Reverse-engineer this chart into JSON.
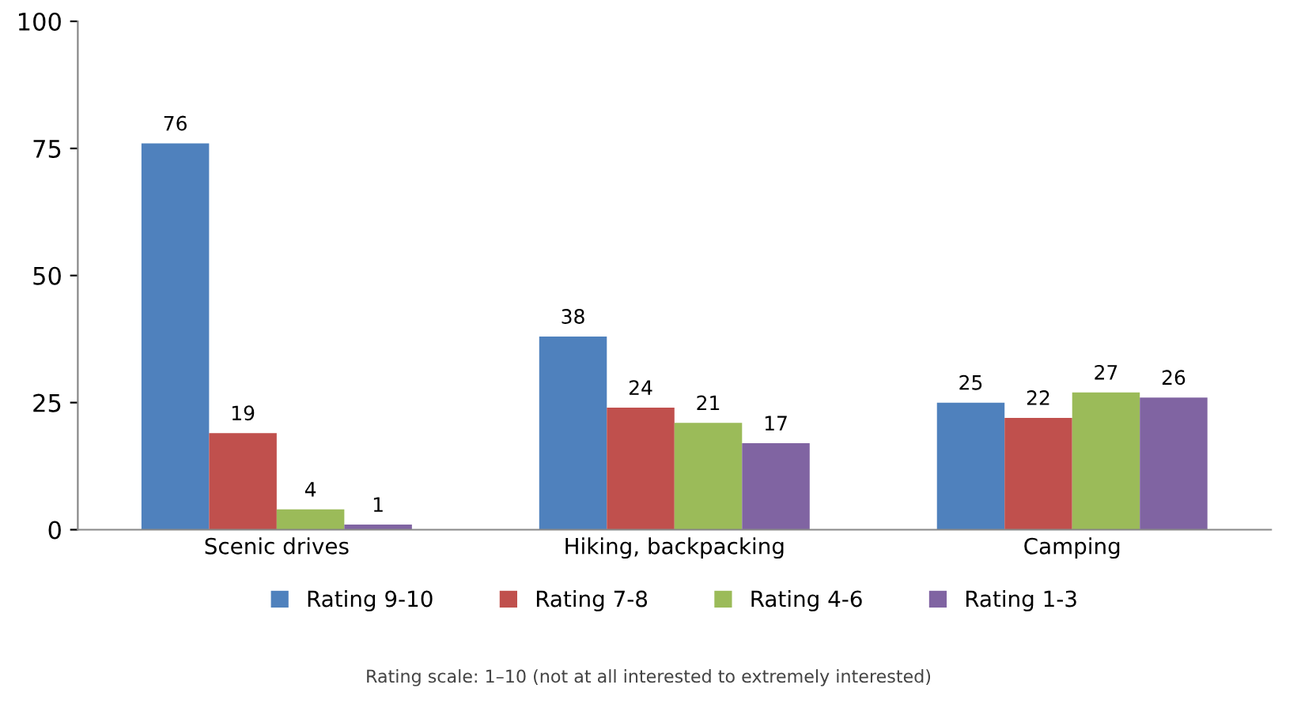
{
  "chart_data": {
    "type": "bar",
    "categories": [
      "Scenic drives",
      "Hiking, backpacking",
      "Camping"
    ],
    "series": [
      {
        "name": "Rating 9-10",
        "color": "#4f81bd",
        "values": [
          76,
          38,
          25
        ]
      },
      {
        "name": "Rating 7-8",
        "color": "#c0504d",
        "values": [
          19,
          24,
          22
        ]
      },
      {
        "name": "Rating 4-6",
        "color": "#9bbb59",
        "values": [
          4,
          21,
          27
        ]
      },
      {
        "name": "Rating 1-3",
        "color": "#8064a2",
        "values": [
          1,
          17,
          26
        ]
      }
    ],
    "ylim": [
      0,
      100
    ],
    "yticks": [
      0,
      25,
      50,
      75,
      100
    ],
    "grid": false,
    "legend": "bottom",
    "data_labels": true,
    "annotations": [
      "Rating scale: 1–10 (not at all interested to extremely interested)"
    ]
  }
}
